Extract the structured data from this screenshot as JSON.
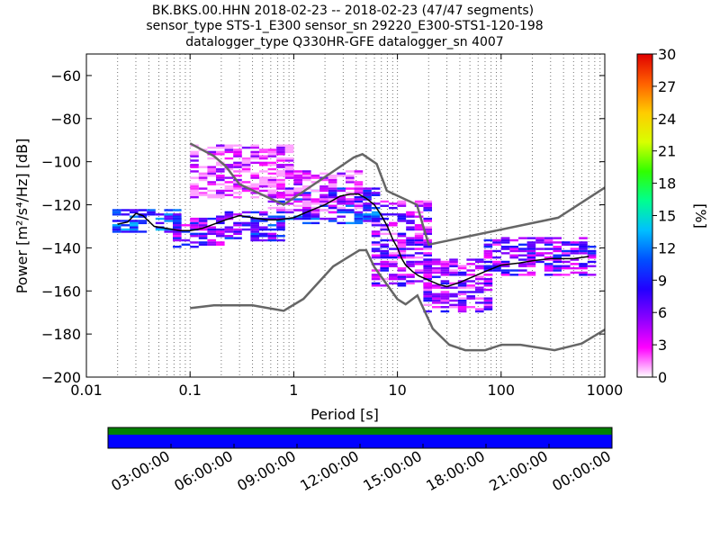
{
  "header": {
    "line1": "BK.BKS.00.HHN   2018-02-23 -- 2018-02-23  (47/47 segments)",
    "line2": "sensor_type STS-1_E300 sensor_sn 29220_E300-STS1-120-198",
    "line3": "datalogger_type Q330HR-GFE datalogger_sn 4007"
  },
  "chart_data": {
    "type": "heatmap",
    "title": "BK.BKS.00.HHN   2018-02-23 -- 2018-02-23  (47/47 segments)",
    "xlabel": "Period [s]",
    "ylabel": "Power [m²/s⁴/Hz] [dB]",
    "x_scale": "log",
    "xlim": [
      0.01,
      1000
    ],
    "ylim": [
      -200,
      -50
    ],
    "xticks": [
      0.01,
      0.1,
      1,
      10,
      100,
      1000
    ],
    "xtick_labels": [
      "0.01",
      "0.1",
      "1",
      "10",
      "100",
      "1000"
    ],
    "yticks": [
      -200,
      -180,
      -160,
      -140,
      -120,
      -100,
      -80,
      -60
    ],
    "ytick_labels": [
      "−200",
      "−180",
      "−160",
      "−140",
      "−120",
      "−100",
      "−80",
      "−60"
    ],
    "grid": "dotted vertical",
    "colorbar": {
      "label": "[%]",
      "min": 0,
      "max": 30,
      "ticks": [
        0,
        3,
        6,
        9,
        12,
        15,
        18,
        21,
        24,
        27,
        30
      ],
      "colors": [
        "#ffffff",
        "#ff00ff",
        "#8a00ff",
        "#2200ff",
        "#0050ff",
        "#00c0ff",
        "#00ff90",
        "#30ff00",
        "#d8ff00",
        "#ffcc00",
        "#ff6000",
        "#e00000"
      ]
    },
    "mean_curve": {
      "x": [
        0.02,
        0.025,
        0.03,
        0.035,
        0.045,
        0.06,
        0.08,
        0.1,
        0.13,
        0.17,
        0.22,
        0.3,
        0.4,
        0.55,
        0.7,
        1.0,
        1.4,
        2.0,
        2.8,
        3.5,
        4.2,
        5.0,
        6.0,
        7.0,
        8.0,
        9.0,
        10.0,
        11.0,
        12.0,
        14.0,
        16.0,
        20.0,
        25.0,
        30.0,
        40.0,
        50.0,
        70.0,
        100.0,
        150.0,
        200.0,
        300.0,
        500.0,
        700.0
      ],
      "y": [
        -129,
        -128,
        -124,
        -125,
        -130,
        -131,
        -132,
        -132,
        -131,
        -129,
        -127,
        -125,
        -126,
        -127,
        -127,
        -126,
        -123,
        -120,
        -116,
        -115,
        -115,
        -117,
        -120,
        -125,
        -130,
        -136,
        -140,
        -145,
        -148,
        -151,
        -153,
        -155,
        -157,
        -158,
        -156,
        -154,
        -151,
        -148,
        -147,
        -146,
        -145,
        -145,
        -144
      ]
    },
    "nhnm": {
      "x": [
        0.1,
        0.17,
        0.22,
        0.3,
        0.8,
        3.8,
        4.6,
        6.3,
        7.9,
        15.4,
        20.0,
        354.8,
        1000.0
      ],
      "y": [
        -91.5,
        -97.4,
        -102,
        -110.5,
        -120,
        -98,
        -96.5,
        -101,
        -113.5,
        -120,
        -138.5,
        -126,
        -112
      ]
    },
    "nlnm": {
      "x": [
        0.1,
        0.17,
        0.4,
        0.8,
        1.24,
        2.4,
        4.3,
        5.0,
        6.0,
        10.0,
        12.0,
        15.6,
        21.9,
        31.6,
        45.0,
        70.0,
        101.0,
        154.0,
        328.0,
        600.0,
        1000.0
      ],
      "y": [
        -168,
        -166.7,
        -166.7,
        -169.2,
        -163.7,
        -148.6,
        -141.1,
        -141.1,
        -149,
        -163.8,
        -166.2,
        -162.1,
        -177.5,
        -185,
        -187.5,
        -187.5,
        -185,
        -185,
        -187.5,
        -184.4,
        -178
      ]
    },
    "histogram_bands": [
      {
        "x": [
          0.018,
          0.08
        ],
        "y": [
          -133,
          -122
        ],
        "level": 10
      },
      {
        "x": [
          0.08,
          0.2
        ],
        "y": [
          -140,
          -126
        ],
        "level": 6
      },
      {
        "x": [
          0.2,
          0.8
        ],
        "y": [
          -137,
          -123
        ],
        "level": 8
      },
      {
        "x": [
          0.8,
          6.0
        ],
        "y": [
          -129,
          -112
        ],
        "level": 9
      },
      {
        "x": [
          6.0,
          20.0
        ],
        "y": [
          -158,
          -118
        ],
        "level": 5
      },
      {
        "x": [
          20.0,
          80.0
        ],
        "y": [
          -170,
          -145
        ],
        "level": 5
      },
      {
        "x": [
          80.0,
          700.0
        ],
        "y": [
          -153,
          -135
        ],
        "level": 6
      },
      {
        "x": [
          0.12,
          1.0
        ],
        "y": [
          -117,
          -92
        ],
        "level": 2
      },
      {
        "x": [
          0.6,
          4.0
        ],
        "y": [
          -124,
          -104
        ],
        "level": 2
      }
    ]
  },
  "timeline": {
    "tick_labels": [
      "03:00:00",
      "06:00:00",
      "09:00:00",
      "12:00:00",
      "15:00:00",
      "18:00:00",
      "21:00:00",
      "00:00:00"
    ],
    "data_color": "#0000ff",
    "gap_color": "#008000"
  }
}
